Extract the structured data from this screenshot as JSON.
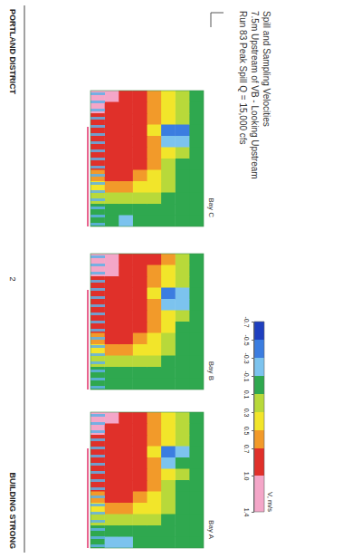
{
  "chart_data": {
    "type": "heatmap",
    "title": "Spill and Sampling Velocities",
    "subtitle": "7.5m Upstream of VB - Looking Upstream",
    "annotations": [
      "Run 83 Peak Spill Q = 15,000 cfs"
    ],
    "tick_labels": false,
    "panels": [
      {
        "name": "Bay C",
        "cells": [
          [
            0,
            0,
            0,
            0,
            0,
            0,
            0,
            0,
            0,
            0,
            0,
            0
          ],
          [
            0.2,
            0.2,
            0.1,
            -0.4,
            -0.2,
            0.1,
            0,
            0,
            0,
            0,
            0,
            0
          ],
          [
            0.4,
            0.4,
            0.3,
            -0.5,
            -0.3,
            0.3,
            0.2,
            0.2,
            0.1,
            0,
            0,
            0
          ],
          [
            0.6,
            0.6,
            0.5,
            0.4,
            0.5,
            0.6,
            0.5,
            0.4,
            0.3,
            0.1,
            0,
            0
          ],
          [
            0.8,
            0.8,
            0.7,
            0.7,
            0.8,
            0.8,
            0.7,
            0.6,
            0.4,
            0.2,
            0,
            0
          ],
          [
            0.9,
            0.9,
            0.8,
            0.8,
            0.9,
            0.9,
            0.8,
            0.7,
            0.5,
            0.2,
            0,
            -0.2
          ],
          [
            1.1,
            0.9,
            0.9,
            0.8,
            0.9,
            0.9,
            0.8,
            0.7,
            0.5,
            0.2,
            0,
            0
          ],
          [
            1.3,
            1.1,
            0.9,
            0.8,
            0.8,
            0.8,
            0.8,
            0.6,
            0.4,
            0.2,
            0,
            0
          ]
        ]
      },
      {
        "name": "Bay B",
        "cells": [
          [
            0,
            0,
            0,
            0,
            0,
            0,
            0,
            0,
            0,
            0,
            0,
            0
          ],
          [
            0.2,
            0.2,
            0.1,
            -0.3,
            -0.2,
            0.1,
            0,
            0,
            0,
            0,
            0,
            0
          ],
          [
            0.5,
            0.4,
            0.3,
            -0.5,
            -0.2,
            0.3,
            0.3,
            0.2,
            0.1,
            0,
            0,
            0
          ],
          [
            0.7,
            0.6,
            0.5,
            0.4,
            0.5,
            0.6,
            0.5,
            0.4,
            0.3,
            0.1,
            0,
            0
          ],
          [
            0.8,
            0.8,
            0.8,
            0.7,
            0.8,
            0.8,
            0.7,
            0.6,
            0.4,
            0.2,
            0,
            0
          ],
          [
            0.9,
            0.9,
            0.9,
            0.8,
            0.9,
            0.8,
            0.8,
            0.7,
            0.5,
            0.2,
            0,
            0
          ],
          [
            1.2,
            1.0,
            0.9,
            0.8,
            0.9,
            0.9,
            0.8,
            0.7,
            0.5,
            0.2,
            0,
            0
          ],
          [
            1.3,
            1.1,
            0.9,
            0.8,
            0.8,
            0.8,
            0.7,
            0.6,
            0.4,
            0.2,
            0,
            0
          ]
        ]
      },
      {
        "name": "Bay A",
        "cells": [
          [
            0,
            0,
            0,
            0,
            0,
            0,
            0,
            0,
            0,
            0,
            0,
            0
          ],
          [
            0.2,
            0.1,
            0.1,
            -0.3,
            -0.1,
            0.1,
            0,
            0,
            0,
            0,
            0,
            0
          ],
          [
            0.4,
            0.4,
            0.3,
            -0.5,
            -0.3,
            0.3,
            0.2,
            0.2,
            0.1,
            0,
            0,
            0
          ],
          [
            0.6,
            0.6,
            0.5,
            0.4,
            0.5,
            0.6,
            0.5,
            0.4,
            0.3,
            0.1,
            0,
            0
          ],
          [
            0.8,
            0.8,
            0.7,
            0.7,
            0.8,
            0.8,
            0.7,
            0.6,
            0.4,
            0.2,
            0,
            0
          ],
          [
            0.9,
            0.9,
            0.8,
            0.8,
            0.9,
            0.9,
            0.8,
            0.7,
            0.5,
            0.2,
            0,
            -0.2
          ],
          [
            1.1,
            0.9,
            0.9,
            0.8,
            0.9,
            0.9,
            0.8,
            0.7,
            0.5,
            0.2,
            0,
            -0.2
          ],
          [
            1.3,
            1.0,
            0.9,
            0.8,
            0.8,
            0.8,
            0.8,
            0.6,
            0.4,
            0.2,
            0,
            0
          ]
        ]
      }
    ],
    "color_bar": {
      "label": "V, m/s",
      "range": [
        -0.7,
        1.4
      ],
      "ticks": [
        -0.7,
        -0.5,
        -0.3,
        -0.1,
        0.1,
        0.3,
        0.5,
        0.7,
        {
          "value": 1,
          "label": "1.0"
        },
        1.4
      ],
      "colors": [
        "#1f3fbf",
        "#3b7de0",
        "#7cc3ee",
        "#2fa84f",
        "#b8d93a",
        "#f2e52a",
        "#f29a2a",
        "#e0302a",
        "#f4a6c8"
      ]
    }
  },
  "footer": {
    "left": "PORTLAND DISTRICT",
    "page": "2",
    "right": "BUILDING STRONG"
  }
}
